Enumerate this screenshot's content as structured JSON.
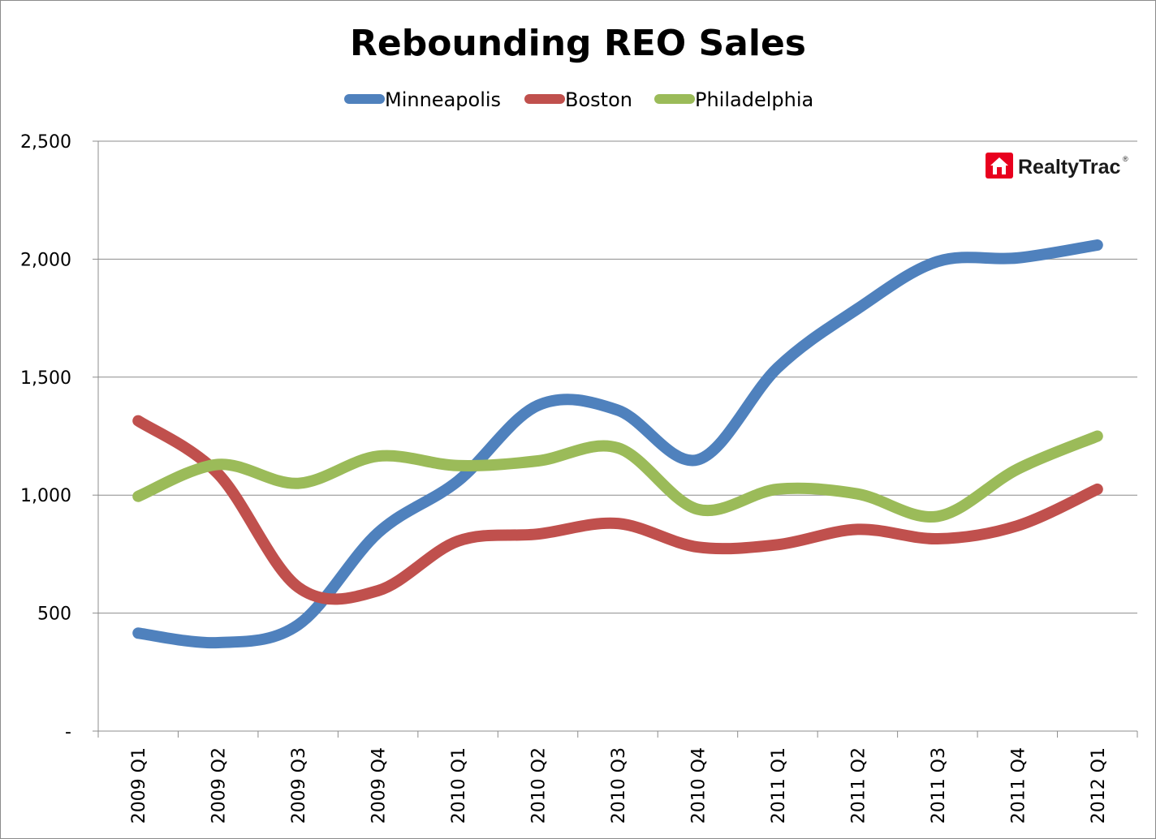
{
  "chart_data": {
    "type": "line",
    "title": "Rebounding REO Sales",
    "xlabel": "",
    "ylabel": "",
    "categories": [
      "2009 Q1",
      "2009 Q2",
      "2009 Q3",
      "2009 Q4",
      "2010 Q1",
      "2010 Q2",
      "2010 Q3",
      "2010 Q4",
      "2011 Q1",
      "2011 Q2",
      "2011 Q3",
      "2011 Q4",
      "2012 Q1"
    ],
    "series": [
      {
        "name": "Minneapolis",
        "color": "#4f81bd",
        "values": [
          415,
          375,
          450,
          840,
          1060,
          1380,
          1360,
          1150,
          1540,
          1790,
          1990,
          2005,
          2060
        ]
      },
      {
        "name": "Boston",
        "color": "#c0504d",
        "values": [
          1315,
          1090,
          610,
          595,
          805,
          835,
          880,
          780,
          790,
          855,
          815,
          870,
          1025
        ]
      },
      {
        "name": "Philadelphia",
        "color": "#9bbb59",
        "values": [
          995,
          1130,
          1050,
          1165,
          1125,
          1145,
          1200,
          940,
          1025,
          1005,
          910,
          1110,
          1250
        ]
      }
    ],
    "ylim": [
      0,
      2500
    ],
    "yticks": [
      0,
      500,
      1000,
      1500,
      2000,
      2500
    ],
    "ytick_labels": [
      "-",
      "500",
      "1,000",
      "1,500",
      "2,000",
      "2,500"
    ],
    "grid": "horizontal",
    "legend_position": "top-center"
  },
  "logo": {
    "text": "RealtyTrac",
    "mark": "®",
    "icon": "house-icon",
    "color": "#e8001e"
  }
}
